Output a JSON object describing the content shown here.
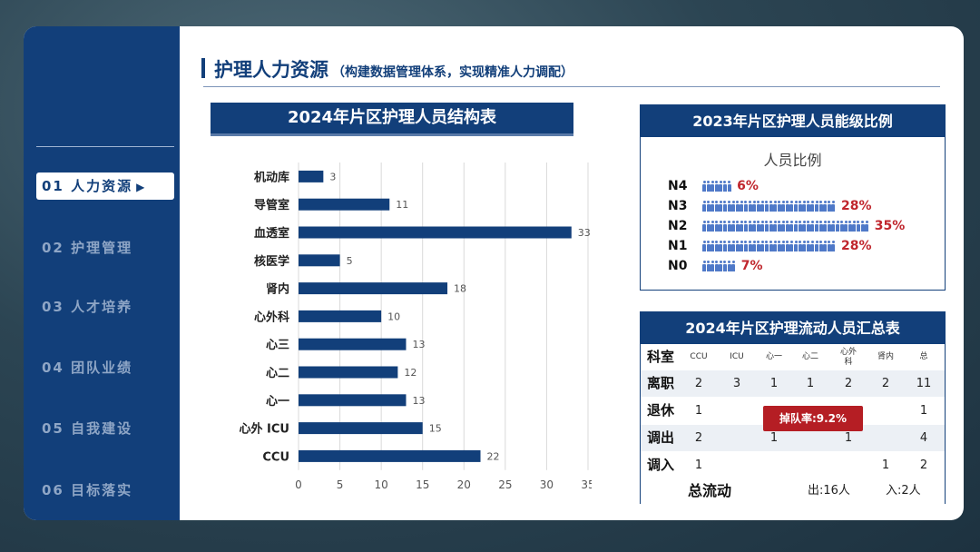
{
  "sidebar": {
    "items": [
      {
        "label": "01  人力资源",
        "active": true
      },
      {
        "label": "02  护理管理",
        "active": false
      },
      {
        "label": "03  人才培养",
        "active": false
      },
      {
        "label": "04  团队业绩",
        "active": false
      },
      {
        "label": "05  自我建设",
        "active": false
      },
      {
        "label": "06  目标落实",
        "active": false
      }
    ]
  },
  "header": {
    "title": "护理人力资源",
    "subtitle": "（构建数据管理体系，实现精准人力调配）"
  },
  "structure_chart": {
    "title": "2024年片区护理人员结构表"
  },
  "chart_data": {
    "type": "bar",
    "orientation": "horizontal",
    "title": "2024年片区护理人员结构表",
    "categories": [
      "机动库",
      "导管室",
      "血透室",
      "核医学",
      "肾内",
      "心外科",
      "心三",
      "心二",
      "心一",
      "心外 ICU",
      "CCU"
    ],
    "values": [
      3,
      11,
      33,
      5,
      18,
      10,
      13,
      12,
      13,
      15,
      22
    ],
    "xlim": [
      0,
      35
    ],
    "xticks": [
      0,
      5,
      10,
      15,
      20,
      25,
      30,
      35
    ],
    "grid": true,
    "bar_color": "#123f7a"
  },
  "ratio_panel": {
    "title": "2023年片区护理人员能级比例",
    "chart_title": "人员比例",
    "rows": [
      {
        "level": "N4",
        "percent": "6%",
        "icons": 7
      },
      {
        "level": "N3",
        "percent": "28%",
        "icons": 32
      },
      {
        "level": "N2",
        "percent": "35%",
        "icons": 40
      },
      {
        "level": "N1",
        "percent": "28%",
        "icons": 32
      },
      {
        "level": "N0",
        "percent": "7%",
        "icons": 8
      }
    ]
  },
  "flow_panel": {
    "title": "2024年片区护理流动人员汇总表",
    "corner_label": "科室",
    "columns": [
      "CCU",
      "ICU",
      "心一",
      "心二",
      "心外科",
      "肾内",
      "总"
    ],
    "rows": [
      {
        "label": "离职",
        "values": [
          "2",
          "3",
          "1",
          "1",
          "2",
          "2",
          "11"
        ]
      },
      {
        "label": "退休",
        "values": [
          "1",
          "",
          "",
          "",
          "",
          "",
          "1"
        ]
      },
      {
        "label": "调出",
        "values": [
          "2",
          "",
          "1",
          "",
          "1",
          "",
          "4"
        ]
      },
      {
        "label": "调入",
        "values": [
          "1",
          "",
          "",
          "",
          "",
          "1",
          "2"
        ]
      }
    ],
    "total_label": "总流动",
    "total_out": "出:16人",
    "total_in": "入:2人",
    "dropout_badge": "掉队率:9.2%"
  },
  "colors": {
    "primary": "#123f7a",
    "accent_red": "#b51e24",
    "icon_blue": "#4f79c8"
  }
}
